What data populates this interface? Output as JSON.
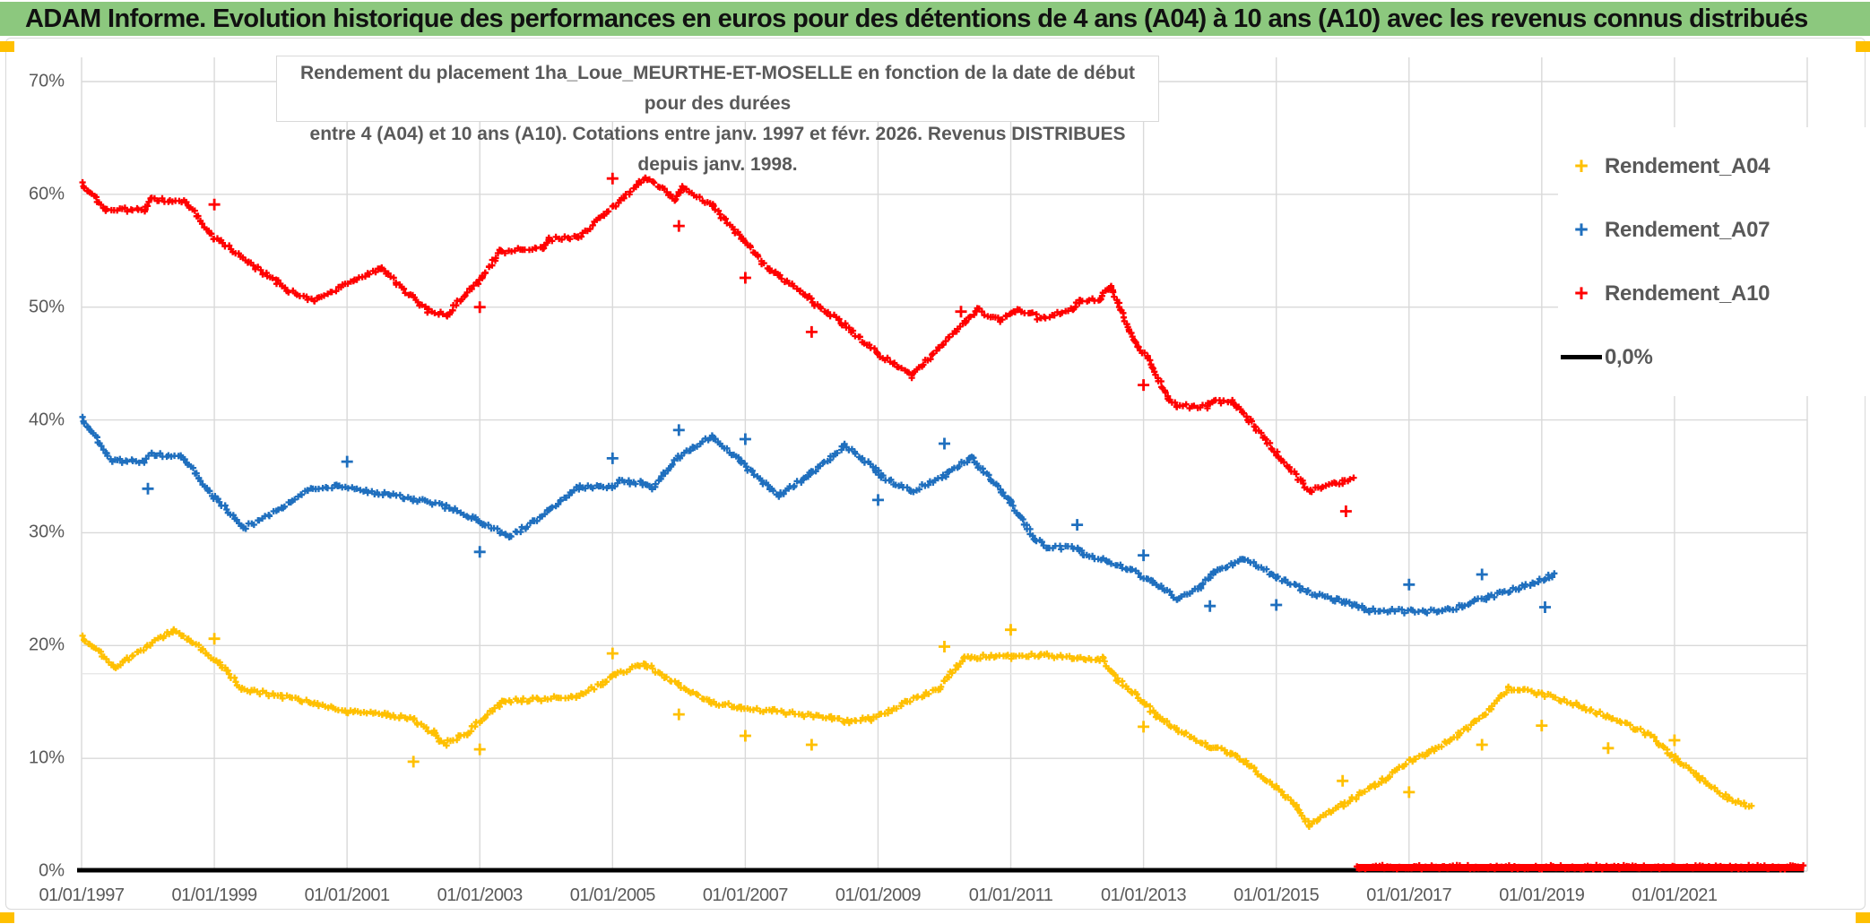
{
  "title_bar": {
    "text": "ADAM Informe. Evolution historique des performances en euros pour des détentions de 4 ans (A04) à 10 ans (A10) avec les revenus connus distribués",
    "bg_color": "#8CC87E"
  },
  "subtitle": {
    "line1": "Rendement du placement 1ha_Loue_MEURTHE-ET-MOSELLE en fonction de la date de début pour des durées",
    "line2": "entre 4 (A04) et 10 ans (A10). Cotations entre janv. 1997 et févr. 2026. Revenus DISTRIBUES depuis janv. 1998."
  },
  "legend": [
    {
      "label": "Rendement_A04",
      "marker": "plus",
      "color": "#FFC000"
    },
    {
      "label": "Rendement_A07",
      "marker": "plus",
      "color": "#1F6FBE"
    },
    {
      "label": "Rendement_A10",
      "marker": "plus",
      "color": "#FF0000"
    },
    {
      "label": "0,0%",
      "marker": "line",
      "color": "#000000"
    }
  ],
  "colors": {
    "a04": "#FFC000",
    "a07": "#1F6FBE",
    "a10": "#FF0000",
    "zero_line": "#000000",
    "gridline": "#D9D9D9",
    "faint_gridline": "#E4E4E4",
    "axis_text": "#595959",
    "corner_accent": "#FFC000"
  },
  "chart_data": {
    "type": "scatter",
    "title": "ADAM Informe. Evolution historique des performances en euros pour des détentions de 4 ans (A04) à 10 ans (A10) avec les revenus connus distribués",
    "xlabel": "",
    "ylabel": "",
    "x_range_years": [
      1997,
      2023
    ],
    "ylim_percent": [
      0,
      70
    ],
    "y_tick_labels": [
      "0%",
      "10%",
      "20%",
      "30%",
      "40%",
      "50%",
      "60%",
      "70%"
    ],
    "y_tick_values": [
      0,
      10,
      20,
      30,
      40,
      50,
      60,
      70
    ],
    "extra_faint_gridline_percent": 17.5,
    "x_tick_labels": [
      "01/01/1997",
      "01/01/1999",
      "01/01/2001",
      "01/01/2003",
      "01/01/2005",
      "01/01/2007",
      "01/01/2009",
      "01/01/2011",
      "01/01/2013",
      "01/01/2015",
      "01/01/2017",
      "01/01/2019",
      "01/01/2021"
    ],
    "x_tick_years": [
      1997,
      1999,
      2001,
      2003,
      2005,
      2007,
      2009,
      2011,
      2013,
      2015,
      2017,
      2019,
      2021
    ],
    "gridlines": true,
    "legend_position": "right",
    "series": [
      {
        "name": "Rendement_A04",
        "color": "#FFC000",
        "points": [
          [
            1997.0,
            20.8
          ],
          [
            1997.5,
            18.1
          ],
          [
            1998.4,
            21.4
          ],
          [
            1999.1,
            18.4
          ],
          [
            1999.4,
            16.2
          ],
          [
            2000.0,
            15.5
          ],
          [
            2000.5,
            14.9
          ],
          [
            2001.0,
            14.1
          ],
          [
            2001.6,
            13.9
          ],
          [
            2002.0,
            13.4
          ],
          [
            2002.3,
            12.3
          ],
          [
            2002.45,
            11.2
          ],
          [
            2002.8,
            12.2
          ],
          [
            2003.35,
            15.1
          ],
          [
            2003.8,
            15.2
          ],
          [
            2004.45,
            15.5
          ],
          [
            2004.85,
            16.6
          ],
          [
            2005.05,
            17.5
          ],
          [
            2005.5,
            18.3
          ],
          [
            2006.0,
            16.5
          ],
          [
            2006.45,
            15.0
          ],
          [
            2006.95,
            14.5
          ],
          [
            2007.4,
            14.2
          ],
          [
            2007.85,
            13.9
          ],
          [
            2008.3,
            13.6
          ],
          [
            2008.55,
            13.3
          ],
          [
            2008.9,
            13.5
          ],
          [
            2009.45,
            15.0
          ],
          [
            2009.9,
            16.1
          ],
          [
            2010.3,
            18.9
          ],
          [
            2010.5,
            19.0
          ],
          [
            2011.0,
            19.0
          ],
          [
            2011.45,
            19.2
          ],
          [
            2012.0,
            18.9
          ],
          [
            2012.4,
            18.8
          ],
          [
            2012.6,
            17.0
          ],
          [
            2013.0,
            15.1
          ],
          [
            2013.2,
            13.7
          ],
          [
            2013.5,
            12.6
          ],
          [
            2014.0,
            11.0
          ],
          [
            2014.3,
            10.5
          ],
          [
            2014.5,
            9.8
          ],
          [
            2015.0,
            7.4
          ],
          [
            2015.3,
            5.7
          ],
          [
            2015.5,
            4.1
          ],
          [
            2016.0,
            5.9
          ],
          [
            2016.5,
            7.6
          ],
          [
            2017.0,
            9.7
          ],
          [
            2017.3,
            10.5
          ],
          [
            2017.75,
            12.1
          ],
          [
            2018.2,
            14.2
          ],
          [
            2018.5,
            16.2
          ],
          [
            2019.0,
            15.7
          ],
          [
            2019.55,
            14.7
          ],
          [
            2020.0,
            13.7
          ],
          [
            2020.65,
            12.0
          ],
          [
            2021.0,
            10.0
          ],
          [
            2021.35,
            8.4
          ],
          [
            2021.6,
            7.2
          ],
          [
            2021.8,
            6.5
          ],
          [
            2022.15,
            5.6
          ]
        ],
        "outliers": [
          [
            1999.0,
            20.6
          ],
          [
            2002.0,
            9.7
          ],
          [
            2003.0,
            10.8
          ],
          [
            2005.0,
            19.3
          ],
          [
            2006.0,
            13.9
          ],
          [
            2007.0,
            12.0
          ],
          [
            2008.0,
            11.2
          ],
          [
            2010.0,
            19.9
          ],
          [
            2011.0,
            21.4
          ],
          [
            2013.0,
            12.8
          ],
          [
            2016.0,
            8.0
          ],
          [
            2017.0,
            7.0
          ],
          [
            2018.1,
            11.2
          ],
          [
            2019.0,
            12.9
          ],
          [
            2020.0,
            10.9
          ],
          [
            2021.0,
            11.6
          ]
        ]
      },
      {
        "name": "Rendement_A07",
        "color": "#1F6FBE",
        "points": [
          [
            1997.0,
            40.2
          ],
          [
            1997.45,
            36.4
          ],
          [
            1997.95,
            36.3
          ],
          [
            1998.05,
            36.9
          ],
          [
            1998.5,
            36.8
          ],
          [
            1999.0,
            33.2
          ],
          [
            1999.45,
            30.4
          ],
          [
            2000.0,
            32.1
          ],
          [
            2000.4,
            33.8
          ],
          [
            2000.85,
            34.1
          ],
          [
            2002.0,
            33.0
          ],
          [
            2002.55,
            32.2
          ],
          [
            2002.95,
            31.2
          ],
          [
            2003.05,
            30.8
          ],
          [
            2003.45,
            29.7
          ],
          [
            2003.8,
            30.9
          ],
          [
            2004.4,
            33.7
          ],
          [
            2004.5,
            34.0
          ],
          [
            2005.0,
            34.1
          ],
          [
            2005.1,
            34.5
          ],
          [
            2005.45,
            34.4
          ],
          [
            2005.6,
            34.0
          ],
          [
            2006.0,
            36.7
          ],
          [
            2006.5,
            38.6
          ],
          [
            2006.95,
            36.2
          ],
          [
            2007.5,
            33.3
          ],
          [
            2007.9,
            34.9
          ],
          [
            2008.0,
            35.3
          ],
          [
            2008.5,
            37.7
          ],
          [
            2008.95,
            35.7
          ],
          [
            2009.05,
            35.0
          ],
          [
            2009.5,
            33.7
          ],
          [
            2009.95,
            34.8
          ],
          [
            2010.05,
            35.3
          ],
          [
            2010.4,
            36.7
          ],
          [
            2011.0,
            32.8
          ],
          [
            2011.35,
            29.5
          ],
          [
            2011.55,
            28.8
          ],
          [
            2012.0,
            28.6
          ],
          [
            2012.1,
            28.1
          ],
          [
            2012.45,
            27.5
          ],
          [
            2012.8,
            26.7
          ],
          [
            2013.15,
            25.6
          ],
          [
            2013.5,
            24.2
          ],
          [
            2013.85,
            25.1
          ],
          [
            2014.05,
            26.4
          ],
          [
            2014.5,
            27.7
          ],
          [
            2015.0,
            26.1
          ],
          [
            2015.45,
            24.8
          ],
          [
            2015.9,
            24.0
          ],
          [
            2016.05,
            23.8
          ],
          [
            2016.4,
            23.1
          ],
          [
            2017.5,
            23.0
          ],
          [
            2017.8,
            23.5
          ],
          [
            2018.2,
            24.3
          ],
          [
            2018.65,
            25.1
          ],
          [
            2019.1,
            26.1
          ],
          [
            2019.2,
            26.3
          ]
        ],
        "outliers": [
          [
            1998.0,
            33.9
          ],
          [
            2001.0,
            36.3
          ],
          [
            2003.0,
            28.3
          ],
          [
            2005.0,
            36.6
          ],
          [
            2006.0,
            39.1
          ],
          [
            2007.0,
            38.3
          ],
          [
            2009.0,
            32.9
          ],
          [
            2010.0,
            37.9
          ],
          [
            2012.0,
            30.7
          ],
          [
            2013.0,
            28.0
          ],
          [
            2014.0,
            23.5
          ],
          [
            2015.0,
            23.6
          ],
          [
            2017.0,
            25.4
          ],
          [
            2018.1,
            26.3
          ],
          [
            2019.05,
            23.4
          ]
        ]
      },
      {
        "name": "Rendement_A10",
        "color": "#FF0000",
        "points": [
          [
            1997.0,
            61.0
          ],
          [
            1997.1,
            60.3
          ],
          [
            1997.35,
            58.7
          ],
          [
            1997.95,
            58.6
          ],
          [
            1998.05,
            59.5
          ],
          [
            1998.55,
            59.4
          ],
          [
            1999.0,
            56.2
          ],
          [
            1999.95,
            52.2
          ],
          [
            2000.05,
            51.6
          ],
          [
            2000.5,
            50.6
          ],
          [
            2001.1,
            52.3
          ],
          [
            2001.5,
            53.5
          ],
          [
            2002.2,
            49.7
          ],
          [
            2002.5,
            49.3
          ],
          [
            2003.05,
            52.8
          ],
          [
            2003.3,
            54.9
          ],
          [
            2003.95,
            55.3
          ],
          [
            2004.05,
            56.0
          ],
          [
            2004.5,
            56.2
          ],
          [
            2005.5,
            61.5
          ],
          [
            2005.95,
            59.6
          ],
          [
            2006.05,
            60.7
          ],
          [
            2006.5,
            59.0
          ],
          [
            2007.0,
            55.8
          ],
          [
            2007.35,
            53.4
          ],
          [
            2007.95,
            51.0
          ],
          [
            2008.05,
            50.2
          ],
          [
            2008.4,
            48.9
          ],
          [
            2009.0,
            45.9
          ],
          [
            2009.5,
            43.9
          ],
          [
            2010.3,
            48.7
          ],
          [
            2010.5,
            49.8
          ],
          [
            2010.85,
            48.8
          ],
          [
            2011.05,
            49.7
          ],
          [
            2011.3,
            49.6
          ],
          [
            2011.45,
            48.9
          ],
          [
            2011.95,
            49.9
          ],
          [
            2012.05,
            50.6
          ],
          [
            2012.35,
            50.7
          ],
          [
            2012.5,
            51.9
          ],
          [
            2012.9,
            46.5
          ],
          [
            2013.05,
            45.6
          ],
          [
            2013.4,
            41.7
          ],
          [
            2013.5,
            41.2
          ],
          [
            2013.95,
            41.2
          ],
          [
            2014.05,
            41.6
          ],
          [
            2014.35,
            41.6
          ],
          [
            2014.6,
            39.9
          ],
          [
            2015.0,
            37.0
          ],
          [
            2015.5,
            33.7
          ],
          [
            2016.0,
            34.5
          ],
          [
            2016.15,
            34.9
          ]
        ],
        "outliers": [
          [
            1999.0,
            59.1
          ],
          [
            2003.0,
            50.0
          ],
          [
            2005.0,
            61.4
          ],
          [
            2006.0,
            57.2
          ],
          [
            2007.0,
            52.6
          ],
          [
            2008.0,
            47.8
          ],
          [
            2010.25,
            49.6
          ],
          [
            2013.0,
            43.1
          ],
          [
            2016.05,
            31.9
          ]
        ],
        "zero_tail_years": [
          2016.2,
          2022.95
        ]
      },
      {
        "name": "0,0%",
        "color": "#000000",
        "type": "reference-line",
        "value": 0.0,
        "x_range_years": [
          1997.0,
          2022.95
        ]
      }
    ]
  }
}
